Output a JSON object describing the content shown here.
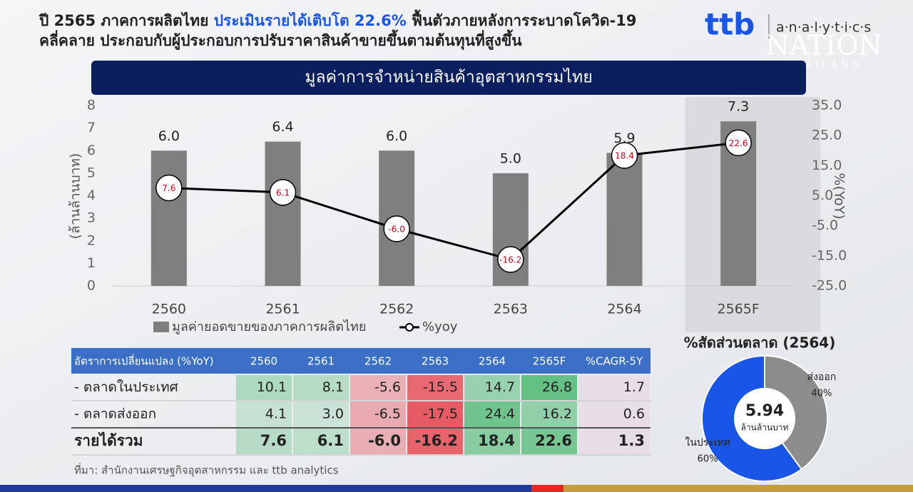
{
  "header": {
    "line1_a": "ปี 2565 ภาคการผลิตไทย ",
    "line1_highlight": "ประเมินรายได้เติบโต 22.6%",
    "line1_b": " ฟื้นตัวภายหลังการระบาดโควิด-19",
    "line2": "คลี่คลาย ประกอบกับผู้ประกอบการปรับราคาสินค้าขายขึ้นตามต้นทุนที่สูงขึ้น"
  },
  "logo": {
    "brand": "ttb",
    "product": "a·n·a·l·y·t·i·c·s",
    "watermark": "NATION",
    "watermark_sub": "THAILAND"
  },
  "chart_data": [
    {
      "type": "bar",
      "title": "มูลค่าการจำหน่ายสินค้าอุตสาหกรรมไทย",
      "categories": [
        "2560",
        "2561",
        "2562",
        "2563",
        "2564",
        "2565F"
      ],
      "ylabel": "(ล้านล้านบาท)",
      "y2label": "%(YoY)",
      "series": [
        {
          "name": "มูลค่ายอดขายของภาคการผลิตไทย",
          "type": "bar",
          "color": "#7f7f7f",
          "values": [
            6.0,
            6.4,
            6.0,
            5.0,
            5.9,
            7.3
          ],
          "value_labels": [
            "6.0",
            "6.4",
            "6.0",
            "5.0",
            "5.9",
            "7.3"
          ]
        },
        {
          "name": "%yoy",
          "type": "line",
          "axis": "y2",
          "color": "#000000",
          "label_color": "#d0021b",
          "values": [
            7.6,
            6.1,
            -6.0,
            -16.2,
            18.4,
            22.6
          ],
          "value_labels": [
            "7.6",
            "6.1",
            "-6.0",
            "-16.2",
            "18.4",
            "22.6"
          ]
        }
      ],
      "ylim": [
        0,
        8
      ],
      "yticks": [
        0,
        1,
        2,
        3,
        4,
        5,
        6,
        7,
        8
      ],
      "y2lim": [
        -25,
        35
      ],
      "y2ticks": [
        {
          "value": -25,
          "label": "-25.0"
        },
        {
          "value": -15,
          "label": "-15.0"
        },
        {
          "value": -5,
          "label": "-5.0"
        },
        {
          "value": 5,
          "label": "5.0"
        },
        {
          "value": 15,
          "label": "15.0"
        },
        {
          "value": 25,
          "label": "25.0"
        },
        {
          "value": 35,
          "label": "35.0"
        }
      ],
      "highlight_index": 5
    },
    {
      "type": "pie",
      "title": "%สัดส่วนตลาด (2564)",
      "categories": [
        "ส่งออก",
        "ในประเทศ"
      ],
      "values": [
        40,
        60
      ],
      "value_labels": [
        "40%",
        "60%"
      ],
      "colors": [
        "#8c8c8c",
        "#1a56e6"
      ],
      "center_value": 5.94,
      "center_text": "ล้านล้านบาท"
    }
  ],
  "table": {
    "header": [
      "อัตราการเปลี่ยนแปลง (%YoY)",
      "2560",
      "2561",
      "2562",
      "2563",
      "2564",
      "2565F",
      "%CAGR-5Y"
    ],
    "rows": [
      [
        "- ตลาดในประเทศ",
        "10.1",
        "8.1",
        "-5.6",
        "-15.5",
        "14.7",
        "26.8",
        "1.7"
      ],
      [
        "- ตลาดส่งออก",
        "4.1",
        "3.0",
        "-6.5",
        "-17.5",
        "24.4",
        "16.2",
        "0.6"
      ],
      [
        "รายได้รวม",
        "7.6",
        "6.1",
        "-6.0",
        "-16.2",
        "18.4",
        "22.6",
        "1.3"
      ]
    ]
  },
  "source": "ที่มา: สำนักงานเศรษฐกิจอุตสาหกรรม และ ttb analytics"
}
